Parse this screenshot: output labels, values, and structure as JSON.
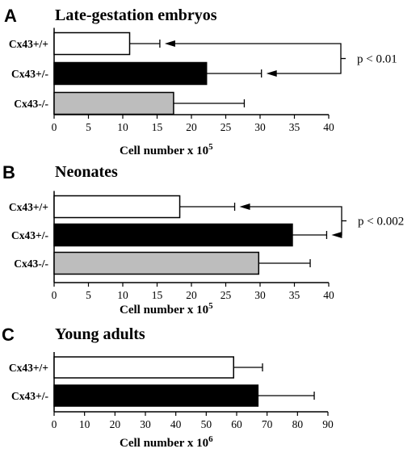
{
  "chart_data": [
    {
      "type": "bar",
      "orientation": "horizontal",
      "panel": "A",
      "title": "Late-gestation embryos",
      "categories": [
        "Cx43+/+",
        "Cx43+/-",
        "Cx43-/-"
      ],
      "values": [
        11,
        22.2,
        17.4
      ],
      "error_plus": [
        4.4,
        8.0,
        10.3
      ],
      "fill_colors": [
        "#ffffff",
        "#000000",
        "#bdbdbd"
      ],
      "xlabel": "Cell number x 10",
      "xlabel_exponent": "5",
      "xlim": [
        0,
        40
      ],
      "xticks": [
        0,
        5,
        10,
        15,
        20,
        25,
        30,
        35,
        40
      ],
      "grid": false,
      "annotation": {
        "text": "p < 0.01",
        "compares": [
          "Cx43+/+",
          "Cx43+/-"
        ]
      }
    },
    {
      "type": "bar",
      "orientation": "horizontal",
      "panel": "B",
      "title": "Neonates",
      "categories": [
        "Cx43+/+",
        "Cx43+/-",
        "Cx43-/-"
      ],
      "values": [
        18.3,
        34.7,
        29.8
      ],
      "error_plus": [
        8.0,
        5.0,
        7.5
      ],
      "fill_colors": [
        "#ffffff",
        "#000000",
        "#bdbdbd"
      ],
      "xlabel": "Cell number x 10",
      "xlabel_exponent": "5",
      "xlim": [
        0,
        40
      ],
      "xticks": [
        0,
        5,
        10,
        15,
        20,
        25,
        30,
        35,
        40
      ],
      "grid": false,
      "annotation": {
        "text": "p < 0.002",
        "compares": [
          "Cx43+/+",
          "Cx43+/-"
        ]
      }
    },
    {
      "type": "bar",
      "orientation": "horizontal",
      "panel": "C",
      "title": "Young adults",
      "categories": [
        "Cx43+/+",
        "Cx43+/-"
      ],
      "values": [
        59,
        67
      ],
      "error_plus": [
        9.5,
        18.5
      ],
      "fill_colors": [
        "#ffffff",
        "#000000"
      ],
      "xlabel": "Cell number x 10",
      "xlabel_exponent": "6",
      "xlim": [
        0,
        90
      ],
      "xticks": [
        0,
        10,
        20,
        30,
        40,
        50,
        60,
        70,
        80,
        90
      ],
      "grid": false
    }
  ]
}
